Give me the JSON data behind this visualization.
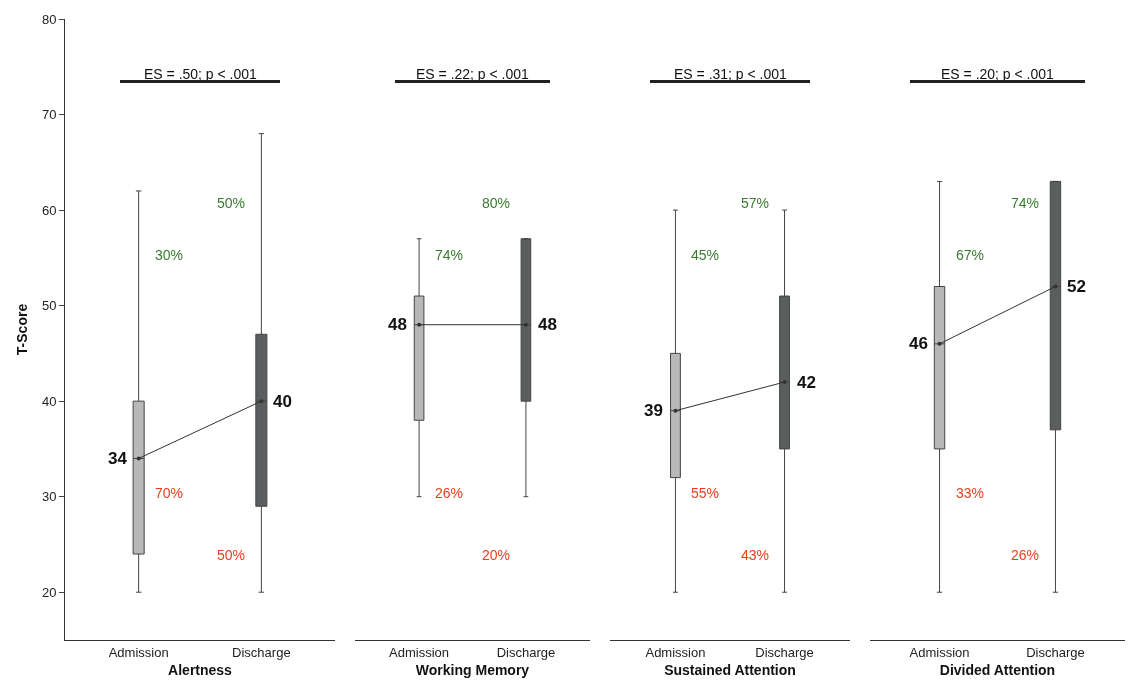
{
  "chart_data": [
    {
      "type": "box",
      "xlabel": "Alertness",
      "ylabel": "T-Score",
      "categories": [
        "Admission",
        "Discharge"
      ],
      "ylim": [
        15,
        80
      ],
      "yticks": [
        20,
        30,
        40,
        50,
        60,
        70,
        80
      ],
      "grid": false,
      "annotations": [
        "ES = .50; p < .001",
        "30%",
        "70%",
        "50%",
        "50%"
      ],
      "series": [
        {
          "type": "box",
          "colors": [
            "#b8b8b8",
            "#5a5e5e"
          ],
          "boxes": [
            {
              "low": 20,
              "q1": 24,
              "median": 34,
              "q3": 40,
              "high": 62
            },
            {
              "low": 20,
              "q1": 29,
              "median": 40,
              "q3": 47,
              "high": 68
            }
          ]
        },
        {
          "type": "line",
          "color": "#333333",
          "values": [
            34,
            40
          ],
          "value_labels": [
            "34",
            "40"
          ]
        }
      ]
    },
    {
      "type": "box",
      "xlabel": "Working Memory",
      "categories": [
        "Admission",
        "Discharge"
      ],
      "ylim": [
        15,
        80
      ],
      "yticks": [
        20,
        30,
        40,
        50,
        60,
        70,
        80
      ],
      "tick_labels": "x",
      "grid": false,
      "annotations": [
        "ES = .22; p < .001",
        "74%",
        "26%",
        "80%",
        "20%"
      ],
      "series": [
        {
          "type": "box",
          "colors": [
            "#b8b8b8",
            "#5a5e5e"
          ],
          "boxes": [
            {
              "low": 30,
              "q1": 38,
              "median": 48,
              "q3": 51,
              "high": 57
            },
            {
              "low": 30,
              "q1": 40,
              "median": 48,
              "q3": 57,
              "high": 57
            }
          ]
        },
        {
          "type": "line",
          "color": "#333333",
          "values": [
            48,
            48
          ],
          "value_labels": [
            "48",
            "48"
          ]
        }
      ]
    },
    {
      "type": "box",
      "xlabel": "Sustained Attention",
      "categories": [
        "Admission",
        "Discharge"
      ],
      "ylim": [
        15,
        80
      ],
      "yticks": [
        20,
        30,
        40,
        50,
        60,
        70,
        80
      ],
      "tick_labels": "x",
      "grid": false,
      "annotations": [
        "ES = .31; p < .001",
        "45%",
        "55%",
        "57%",
        "43%"
      ],
      "series": [
        {
          "type": "box",
          "colors": [
            "#b8b8b8",
            "#5a5e5e"
          ],
          "boxes": [
            {
              "low": 20,
              "q1": 32,
              "median": 39,
              "q3": 45,
              "high": 60
            },
            {
              "low": 20,
              "q1": 35,
              "median": 42,
              "q3": 51,
              "high": 60
            }
          ]
        },
        {
          "type": "line",
          "color": "#333333",
          "values": [
            39,
            42
          ],
          "value_labels": [
            "39",
            "42"
          ]
        }
      ]
    },
    {
      "type": "box",
      "xlabel": "Divided Attention",
      "categories": [
        "Admission",
        "Discharge"
      ],
      "ylim": [
        15,
        80
      ],
      "yticks": [
        20,
        30,
        40,
        50,
        60,
        70,
        80
      ],
      "tick_labels": "x",
      "grid": false,
      "annotations": [
        "ES = .20; p < .001",
        "67%",
        "33%",
        "74%",
        "26%"
      ],
      "series": [
        {
          "type": "box",
          "colors": [
            "#b8b8b8",
            "#5a5e5e"
          ],
          "boxes": [
            {
              "low": 20,
              "q1": 35,
              "median": 46,
              "q3": 52,
              "high": 63
            },
            {
              "low": 20,
              "q1": 37,
              "median": 52,
              "q3": 63,
              "high": 63
            }
          ]
        },
        {
          "type": "line",
          "color": "#333333",
          "values": [
            46,
            52
          ],
          "value_labels": [
            "46",
            "52"
          ]
        }
      ]
    }
  ]
}
